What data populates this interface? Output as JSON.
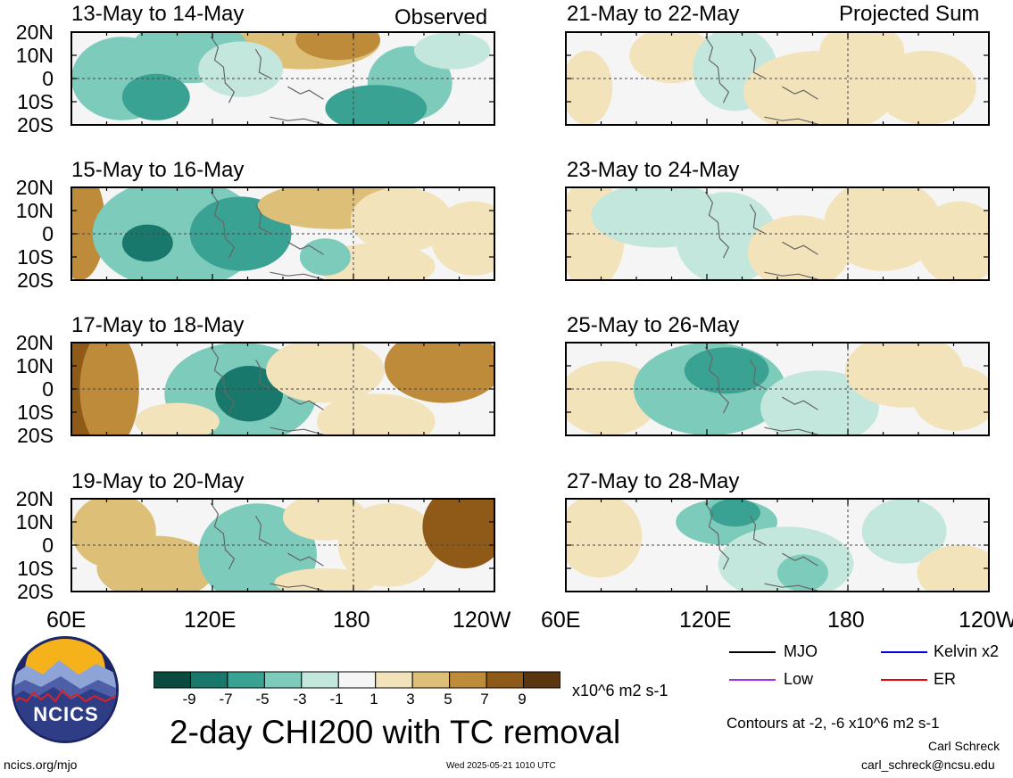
{
  "observed_label": "Observed",
  "projected_label": "Projected Sum",
  "lat_labels": [
    "20N",
    "10N",
    "0",
    "10S",
    "20S"
  ],
  "lon_labels": [
    "60E",
    "120E",
    "180",
    "120W"
  ],
  "chart_data": {
    "type": "heatmap",
    "title": "2-day CHI200 with TC removal",
    "units": "x10^6 m2 s-1",
    "panels": [
      {
        "label": "13-May to 14-May",
        "column": "Observed"
      },
      {
        "label": "15-May to 16-May",
        "column": "Observed"
      },
      {
        "label": "17-May to 18-May",
        "column": "Observed"
      },
      {
        "label": "19-May to 20-May",
        "column": "Observed"
      },
      {
        "label": "21-May to 22-May",
        "column": "Projected Sum"
      },
      {
        "label": "23-May to 24-May",
        "column": "Projected Sum"
      },
      {
        "label": "25-May to 26-May",
        "column": "Projected Sum"
      },
      {
        "label": "27-May to 28-May",
        "column": "Projected Sum"
      }
    ],
    "x_axis": {
      "range": [
        "60E",
        "120W"
      ],
      "ticks": [
        "60E",
        "120E",
        "180",
        "120W"
      ]
    },
    "y_axis": {
      "range": [
        "20S",
        "20N"
      ],
      "ticks": [
        "20N",
        "10N",
        "0",
        "10S",
        "20S"
      ]
    },
    "colorbar": {
      "ticks": [
        "-9",
        "-7",
        "-5",
        "-3",
        "-1",
        "1",
        "3",
        "5",
        "7",
        "9"
      ],
      "colors": [
        "#0b4a3f",
        "#17786b",
        "#3aa293",
        "#7ccbbb",
        "#c4e7dd",
        "#f5f5f5",
        "#f3e3ba",
        "#ddbf78",
        "#be8b3b",
        "#8f5a18",
        "#5b3410"
      ]
    },
    "legend": [
      {
        "label": "MJO",
        "color": "#000000"
      },
      {
        "label": "Kelvin x2",
        "color": "#0000ee"
      },
      {
        "label": "Low",
        "color": "#9933ee"
      },
      {
        "label": "ER",
        "color": "#ee0000"
      }
    ]
  },
  "contour_note": "Contours at -2, -6 x10^6 m2 s-1",
  "author": "Carl Schreck",
  "email": "carl_schreck@ncsu.edu",
  "website": "ncics.org/mjo",
  "timestamp": "Wed 2025-05-21 1010 UTC",
  "logo_text": "NCICS"
}
